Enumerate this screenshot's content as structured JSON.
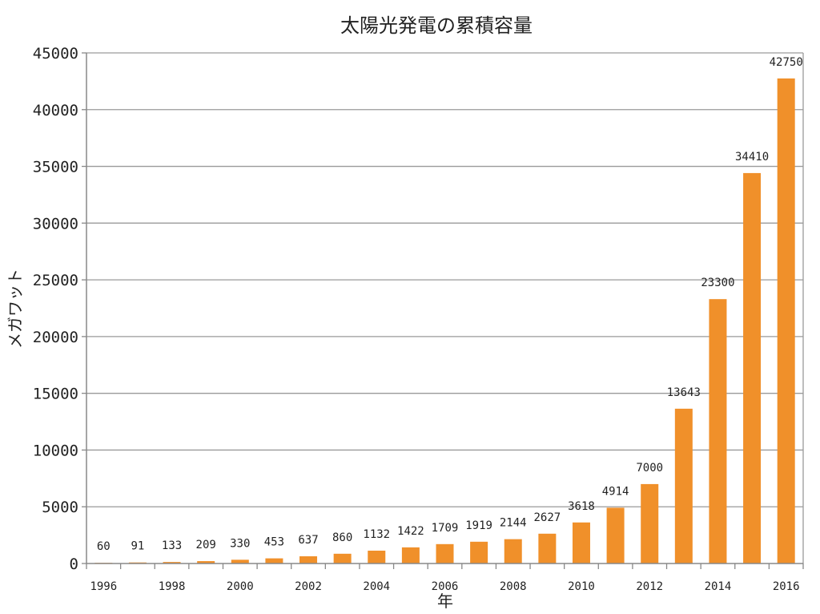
{
  "chart_data": {
    "type": "bar",
    "title": "太陽光発電の累積容量",
    "xlabel": "年",
    "ylabel": "メガワット",
    "categories": [
      "1996",
      "1997",
      "1998",
      "1999",
      "2000",
      "2001",
      "2002",
      "2003",
      "2004",
      "2005",
      "2006",
      "2007",
      "2008",
      "2009",
      "2010",
      "2011",
      "2012",
      "2013",
      "2014",
      "2015",
      "2016"
    ],
    "x_tick_labels": [
      "1996",
      "1998",
      "2000",
      "2002",
      "2004",
      "2006",
      "2008",
      "2010",
      "2012",
      "2014",
      "2016"
    ],
    "values": [
      60,
      91,
      133,
      209,
      330,
      453,
      637,
      860,
      1132,
      1422,
      1709,
      1919,
      2144,
      2627,
      3618,
      4914,
      7000,
      13643,
      23300,
      34410,
      42750
    ],
    "ylim": [
      0,
      45000
    ],
    "y_ticks": [
      0,
      5000,
      10000,
      15000,
      20000,
      25000,
      30000,
      35000,
      40000,
      45000
    ],
    "grid": true,
    "bar_color": "#f0902a",
    "grid_color": "#9a9a9a"
  }
}
